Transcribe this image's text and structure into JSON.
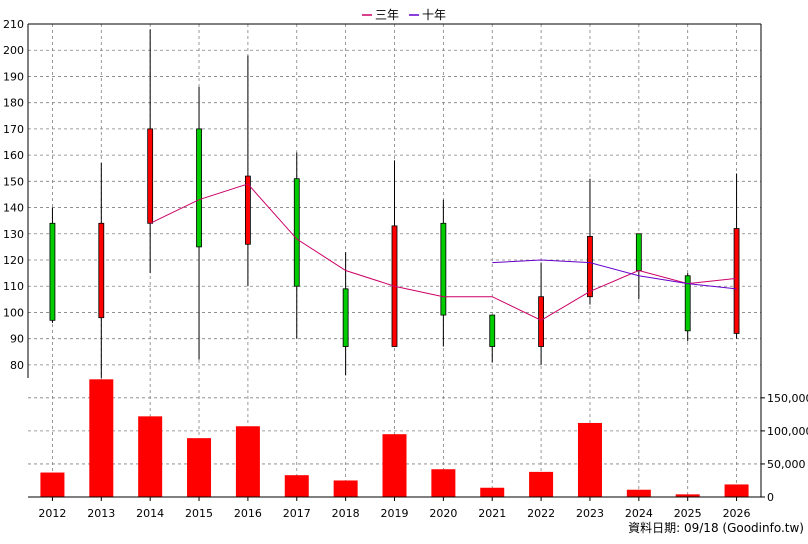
{
  "legend": [
    {
      "label": "三年",
      "color": "#cc0066"
    },
    {
      "label": "十年",
      "color": "#6600cc"
    }
  ],
  "footer": "資料日期: 09/18  (Goodinfo.tw)",
  "colors": {
    "up": "#ff0000",
    "down": "#00cc00",
    "volume": "#ff0000",
    "grid": "#808080",
    "ma3": "#cc0066",
    "ma10": "#6600cc"
  },
  "chart_data": [
    {
      "type": "candlestick",
      "categories": [
        "2012",
        "2013",
        "2014",
        "2015",
        "2016",
        "2017",
        "2018",
        "2019",
        "2020",
        "2021",
        "2022",
        "2023",
        "2024",
        "2025",
        "2026"
      ],
      "ylim": [
        75,
        210
      ],
      "yticks": [
        80,
        90,
        100,
        110,
        120,
        130,
        140,
        150,
        160,
        170,
        180,
        190,
        200,
        210
      ],
      "candles": [
        {
          "open": 97,
          "high": 140,
          "low": 96,
          "close": 134
        },
        {
          "open": 134,
          "high": 157,
          "low": 75,
          "close": 98
        },
        {
          "open": 170,
          "high": 208,
          "low": 115,
          "close": 134
        },
        {
          "open": 125,
          "high": 186,
          "low": 82,
          "close": 170
        },
        {
          "open": 152,
          "high": 198,
          "low": 110,
          "close": 126
        },
        {
          "open": 110,
          "high": 161,
          "low": 90,
          "close": 151
        },
        {
          "open": 87,
          "high": 123,
          "low": 76,
          "close": 109
        },
        {
          "open": 133,
          "high": 158,
          "low": 87,
          "close": 87
        },
        {
          "open": 99,
          "high": 143,
          "low": 87,
          "close": 134
        },
        {
          "open": 87,
          "high": 99,
          "low": 81,
          "close": 99
        },
        {
          "open": 106,
          "high": 119,
          "low": 80,
          "close": 87
        },
        {
          "open": 129,
          "high": 151,
          "low": 103,
          "close": 106
        },
        {
          "open": 116,
          "high": 130,
          "low": 105,
          "close": 130
        },
        {
          "open": 93,
          "high": 115,
          "low": 89,
          "close": 114
        },
        {
          "open": 132,
          "high": 153,
          "low": 90,
          "close": 92
        }
      ],
      "series": [
        {
          "name": "三年",
          "values": [
            null,
            null,
            134,
            143,
            149,
            128,
            116,
            110,
            106,
            106,
            97,
            108,
            116,
            111,
            113
          ]
        },
        {
          "name": "十年",
          "values": [
            null,
            null,
            null,
            null,
            null,
            null,
            null,
            null,
            null,
            119,
            120,
            119,
            114,
            111,
            109
          ]
        }
      ]
    },
    {
      "type": "bar",
      "categories": [
        "2012",
        "2013",
        "2014",
        "2015",
        "2016",
        "2017",
        "2018",
        "2019",
        "2020",
        "2021",
        "2022",
        "2023",
        "2024",
        "2025",
        "2026"
      ],
      "values": [
        37000,
        178000,
        122000,
        89000,
        107000,
        33000,
        25000,
        95000,
        42000,
        14000,
        38000,
        112000,
        11000,
        4000,
        19000
      ],
      "ylim": [
        0,
        180000
      ],
      "yticks": [
        0,
        50000,
        100000,
        150000
      ],
      "ytick_labels": [
        "0",
        "50,000",
        "100,000",
        "150,000"
      ]
    }
  ]
}
